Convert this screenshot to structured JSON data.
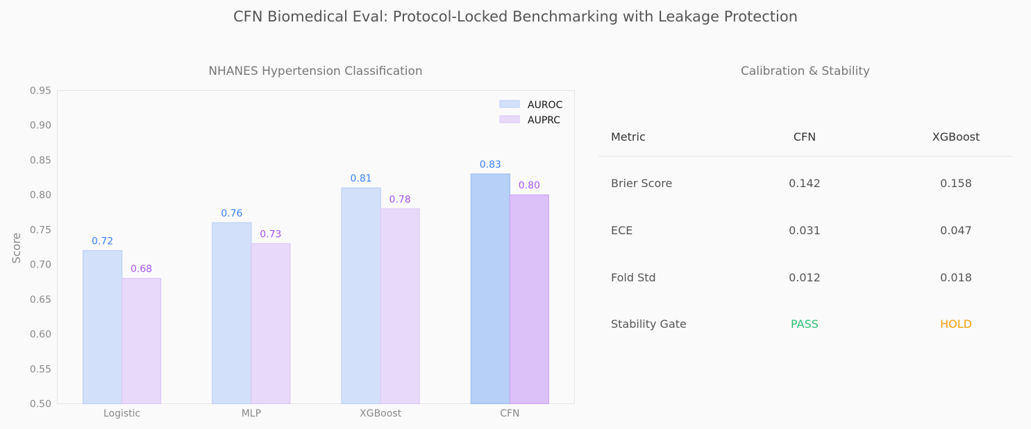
{
  "title": "CFN Biomedical Eval: Protocol-Locked Benchmarking with Leakage Protection",
  "chart_data": [
    {
      "type": "bar",
      "title": "NHANES Hypertension Classification",
      "xlabel": "",
      "ylabel": "Score",
      "ylim": [
        0.5,
        0.95
      ],
      "yticks": [
        "0.50",
        "0.55",
        "0.60",
        "0.65",
        "0.70",
        "0.75",
        "0.80",
        "0.85",
        "0.90",
        "0.95"
      ],
      "grid": false,
      "legend": "top-right",
      "categories": [
        "Logistic",
        "MLP",
        "XGBoost",
        "CFN"
      ],
      "highlight_category": "CFN",
      "series": [
        {
          "name": "AUROC",
          "values": [
            0.72,
            0.76,
            0.81,
            0.83
          ],
          "labels": [
            "0.72",
            "0.76",
            "0.81",
            "0.83"
          ],
          "color": "#3b82f6",
          "fill": "#d2e0fa",
          "highlight_fill": "#b7d0f8"
        },
        {
          "name": "AUPRC",
          "values": [
            0.68,
            0.73,
            0.78,
            0.8
          ],
          "labels": [
            "0.68",
            "0.73",
            "0.78",
            "0.80"
          ],
          "color": "#a855f7",
          "fill": "#e8d9fa",
          "highlight_fill": "#dcc0f8"
        }
      ]
    },
    {
      "type": "table",
      "title": "Calibration & Stability",
      "columns": [
        "Metric",
        "CFN",
        "XGBoost"
      ],
      "rows": [
        [
          "Brier Score",
          "0.142",
          "0.158"
        ],
        [
          "ECE",
          "0.031",
          "0.047"
        ],
        [
          "Fold Std",
          "0.012",
          "0.018"
        ],
        [
          "Stability Gate",
          "PASS",
          "HOLD"
        ]
      ],
      "status_colors": {
        "PASS": "#2dbd6e",
        "HOLD": "#f59e0b"
      }
    }
  ]
}
